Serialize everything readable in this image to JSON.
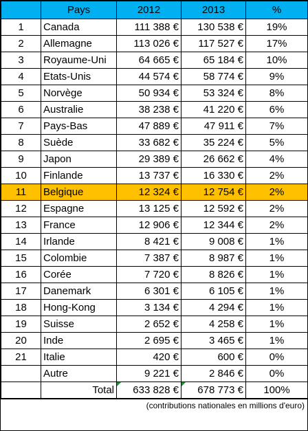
{
  "table": {
    "headers": [
      "",
      "Pays",
      "2012",
      "2013",
      "%"
    ],
    "rows": [
      {
        "rank": "1",
        "country": "Canada",
        "v2012": "111 388 €",
        "v2013": "130 538 €",
        "pct": "19%"
      },
      {
        "rank": "2",
        "country": "Allemagne",
        "v2012": "113 026 €",
        "v2013": "117 527 €",
        "pct": "17%"
      },
      {
        "rank": "3",
        "country": "Royaume-Uni",
        "v2012": "64 665 €",
        "v2013": "65 184 €",
        "pct": "10%"
      },
      {
        "rank": "4",
        "country": "Etats-Unis",
        "v2012": "44 574 €",
        "v2013": "58 774 €",
        "pct": "9%"
      },
      {
        "rank": "5",
        "country": "Norvège",
        "v2012": "50 934 €",
        "v2013": "53 324 €",
        "pct": "8%"
      },
      {
        "rank": "6",
        "country": "Australie",
        "v2012": "38 238 €",
        "v2013": "41 220 €",
        "pct": "6%"
      },
      {
        "rank": "7",
        "country": "Pays-Bas",
        "v2012": "47 889 €",
        "v2013": "47 911 €",
        "pct": "7%"
      },
      {
        "rank": "8",
        "country": "Suède",
        "v2012": "33 682 €",
        "v2013": "35 224 €",
        "pct": "5%"
      },
      {
        "rank": "9",
        "country": "Japon",
        "v2012": "29 389 €",
        "v2013": "26 662 €",
        "pct": "4%"
      },
      {
        "rank": "10",
        "country": "Finlande",
        "v2012": "13 737 €",
        "v2013": "16 330 €",
        "pct": "2%"
      },
      {
        "rank": "11",
        "country": "Belgique",
        "v2012": "12 324 €",
        "v2013": "12 754 €",
        "pct": "2%",
        "highlight": true
      },
      {
        "rank": "12",
        "country": "Espagne",
        "v2012": "13 125 €",
        "v2013": "12 592 €",
        "pct": "2%"
      },
      {
        "rank": "13",
        "country": "France",
        "v2012": "12 906 €",
        "v2013": "12 344 €",
        "pct": "2%"
      },
      {
        "rank": "14",
        "country": "Irlande",
        "v2012": "8 421 €",
        "v2013": "9 008 €",
        "pct": "1%"
      },
      {
        "rank": "15",
        "country": "Colombie",
        "v2012": "7 387 €",
        "v2013": "8 987 €",
        "pct": "1%"
      },
      {
        "rank": "16",
        "country": "Corée",
        "v2012": "7 720 €",
        "v2013": "8 826 €",
        "pct": "1%"
      },
      {
        "rank": "17",
        "country": "Danemark",
        "v2012": "6 301 €",
        "v2013": "6 105 €",
        "pct": "1%"
      },
      {
        "rank": "18",
        "country": "Hong-Kong",
        "v2012": "3 134 €",
        "v2013": "4 294 €",
        "pct": "1%"
      },
      {
        "rank": "19",
        "country": "Suisse",
        "v2012": "2 652 €",
        "v2013": "4 258 €",
        "pct": "1%"
      },
      {
        "rank": "20",
        "country": "Inde",
        "v2012": "2 695 €",
        "v2013": "3 465 €",
        "pct": "1%"
      },
      {
        "rank": "21",
        "country": "Italie",
        "v2012": "420 €",
        "v2013": "600 €",
        "pct": "0%"
      },
      {
        "rank": "",
        "country": "Autre",
        "v2012": "9 221 €",
        "v2013": "2 846 €",
        "pct": "0%"
      }
    ],
    "total": {
      "label": "Total",
      "v2012": "633 828 €",
      "v2013": "678 773 €",
      "pct": "100%"
    }
  },
  "footnote": "(contributions nationales en millions d'euro)",
  "colors": {
    "header": "#00b0f0",
    "highlight": "#ffc000"
  }
}
